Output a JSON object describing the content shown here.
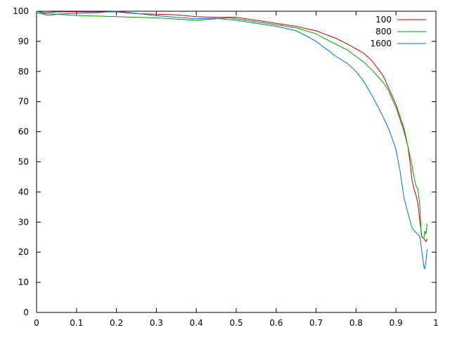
{
  "chart_data": {
    "type": "line",
    "title": "",
    "xlabel": "",
    "ylabel": "",
    "xlim": [
      0,
      1
    ],
    "ylim": [
      0,
      100
    ],
    "x_ticks": [
      "0",
      "0.1",
      "0.2",
      "0.3",
      "0.4",
      "0.5",
      "0.6",
      "0.7",
      "0.8",
      "0.9",
      "1"
    ],
    "y_ticks": [
      "0",
      "10",
      "20",
      "30",
      "40",
      "50",
      "60",
      "70",
      "80",
      "90",
      "100"
    ],
    "grid": false,
    "legend_position": "top-right",
    "series": [
      {
        "name": "100",
        "color": "#cc0000",
        "points": [
          [
            0.0,
            100
          ],
          [
            0.02,
            99.5
          ],
          [
            0.05,
            99.8
          ],
          [
            0.1,
            99.8
          ],
          [
            0.15,
            99.8
          ],
          [
            0.2,
            99.8
          ],
          [
            0.25,
            99.2
          ],
          [
            0.3,
            99.0
          ],
          [
            0.35,
            98.8
          ],
          [
            0.4,
            98.2
          ],
          [
            0.45,
            98.0
          ],
          [
            0.5,
            98.0
          ],
          [
            0.55,
            97.0
          ],
          [
            0.6,
            96.0
          ],
          [
            0.65,
            95.0
          ],
          [
            0.7,
            93.5
          ],
          [
            0.72,
            92.5
          ],
          [
            0.75,
            91.0
          ],
          [
            0.78,
            89.0
          ],
          [
            0.8,
            87.5
          ],
          [
            0.82,
            86.0
          ],
          [
            0.84,
            83.5
          ],
          [
            0.86,
            80.0
          ],
          [
            0.87,
            78.0
          ],
          [
            0.88,
            75.0
          ],
          [
            0.89,
            72.0
          ],
          [
            0.9,
            69.0
          ],
          [
            0.91,
            65.0
          ],
          [
            0.92,
            61.0
          ],
          [
            0.93,
            55.0
          ],
          [
            0.935,
            50.0
          ],
          [
            0.94,
            44.0
          ],
          [
            0.945,
            41.0
          ],
          [
            0.95,
            39.0
          ],
          [
            0.955,
            36.0
          ],
          [
            0.96,
            30.0
          ],
          [
            0.965,
            25.0
          ],
          [
            0.97,
            24.5
          ],
          [
            0.975,
            23.5
          ],
          [
            0.978,
            24.5
          ]
        ]
      },
      {
        "name": "800",
        "color": "#00a000",
        "points": [
          [
            0.0,
            100
          ],
          [
            0.02,
            99.2
          ],
          [
            0.05,
            99.0
          ],
          [
            0.1,
            98.6
          ],
          [
            0.15,
            98.4
          ],
          [
            0.2,
            98.2
          ],
          [
            0.25,
            98.0
          ],
          [
            0.3,
            97.8
          ],
          [
            0.35,
            97.4
          ],
          [
            0.4,
            97.0
          ],
          [
            0.45,
            97.5
          ],
          [
            0.48,
            97.8
          ],
          [
            0.5,
            97.5
          ],
          [
            0.55,
            96.5
          ],
          [
            0.6,
            95.5
          ],
          [
            0.65,
            94.5
          ],
          [
            0.7,
            92.5
          ],
          [
            0.72,
            91.0
          ],
          [
            0.75,
            89.0
          ],
          [
            0.78,
            87.0
          ],
          [
            0.8,
            85.0
          ],
          [
            0.82,
            83.0
          ],
          [
            0.84,
            80.5
          ],
          [
            0.86,
            77.5
          ],
          [
            0.87,
            76.0
          ],
          [
            0.88,
            74.0
          ],
          [
            0.89,
            71.0
          ],
          [
            0.9,
            68.0
          ],
          [
            0.91,
            64.0
          ],
          [
            0.92,
            60.0
          ],
          [
            0.93,
            55.0
          ],
          [
            0.94,
            49.0
          ],
          [
            0.945,
            45.0
          ],
          [
            0.95,
            42.0
          ],
          [
            0.955,
            41.0
          ],
          [
            0.96,
            35.0
          ],
          [
            0.963,
            26.0
          ],
          [
            0.966,
            25.0
          ],
          [
            0.97,
            24.5
          ],
          [
            0.972,
            27.0
          ],
          [
            0.975,
            26.0
          ],
          [
            0.978,
            29.5
          ]
        ]
      },
      {
        "name": "1600",
        "color": "#0070d0",
        "points": [
          [
            0.0,
            99.5
          ],
          [
            0.03,
            98.6
          ],
          [
            0.05,
            99.0
          ],
          [
            0.1,
            99.3
          ],
          [
            0.15,
            99.5
          ],
          [
            0.2,
            100
          ],
          [
            0.25,
            99.3
          ],
          [
            0.3,
            98.5
          ],
          [
            0.35,
            98.0
          ],
          [
            0.4,
            97.5
          ],
          [
            0.45,
            97.6
          ],
          [
            0.5,
            97.0
          ],
          [
            0.55,
            96.0
          ],
          [
            0.6,
            95.0
          ],
          [
            0.65,
            93.5
          ],
          [
            0.68,
            91.5
          ],
          [
            0.7,
            90.0
          ],
          [
            0.73,
            87.0
          ],
          [
            0.75,
            85.0
          ],
          [
            0.78,
            82.5
          ],
          [
            0.8,
            80.0
          ],
          [
            0.82,
            76.5
          ],
          [
            0.84,
            72.0
          ],
          [
            0.86,
            67.0
          ],
          [
            0.88,
            61.5
          ],
          [
            0.89,
            58.0
          ],
          [
            0.9,
            54.0
          ],
          [
            0.91,
            47.0
          ],
          [
            0.92,
            38.0
          ],
          [
            0.93,
            33.0
          ],
          [
            0.94,
            28.0
          ],
          [
            0.95,
            26.5
          ],
          [
            0.955,
            26.0
          ],
          [
            0.96,
            25.0
          ],
          [
            0.965,
            20.0
          ],
          [
            0.97,
            15.0
          ],
          [
            0.972,
            14.5
          ],
          [
            0.975,
            17.0
          ],
          [
            0.978,
            21.0
          ]
        ]
      }
    ]
  }
}
